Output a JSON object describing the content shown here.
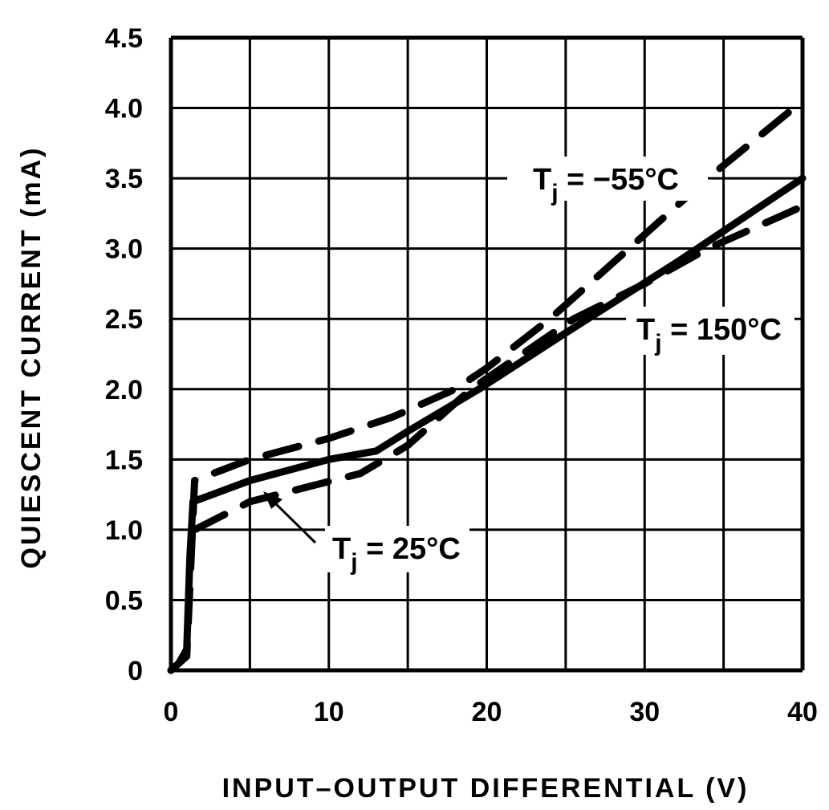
{
  "chart_data": {
    "type": "line",
    "title": "",
    "xlabel": "INPUT–OUTPUT DIFFERENTIAL (V)",
    "ylabel": "QUIESCENT CURRENT (mA)",
    "xlim": [
      0,
      40
    ],
    "ylim": [
      0,
      4.5
    ],
    "grid": true,
    "x_ticks": [
      0,
      10,
      20,
      30,
      40
    ],
    "x_tick_labels": [
      "0",
      "10",
      "20",
      "30",
      "40"
    ],
    "x_grid_step": 5,
    "y_ticks": [
      0,
      0.5,
      1.0,
      1.5,
      2.0,
      2.5,
      3.0,
      3.5,
      4.0,
      4.5
    ],
    "y_tick_labels": [
      "0",
      "0.5",
      "1.0",
      "1.5",
      "2.0",
      "2.5",
      "3.0",
      "3.5",
      "4.0",
      "4.5"
    ],
    "line_color": "#000000",
    "series": [
      {
        "name": "Tj = −55°C",
        "label": {
          "main": "T",
          "sub": "j",
          "rest": " = −55°C"
        },
        "style": "dashed",
        "x": [
          0,
          1.0,
          1.5,
          5,
          10,
          14,
          18,
          20,
          24,
          29,
          34,
          40
        ],
        "y": [
          0,
          0.1,
          1.35,
          1.5,
          1.65,
          1.8,
          2.0,
          2.15,
          2.5,
          3.0,
          3.5,
          4.05
        ]
      },
      {
        "name": "Tj = 25°C",
        "label": {
          "main": "T",
          "sub": "j",
          "rest": " = 25°C"
        },
        "style": "solid",
        "x": [
          0,
          0.5,
          1.0,
          1.2,
          1.4,
          5,
          10,
          13,
          15,
          19.5,
          25,
          32,
          40
        ],
        "y": [
          0,
          0.05,
          0.15,
          0.8,
          1.2,
          1.35,
          1.5,
          1.56,
          1.7,
          2.0,
          2.4,
          2.9,
          3.5
        ]
      },
      {
        "name": "Tj = 150°C",
        "label": {
          "main": "T",
          "sub": "j",
          "rest": " = 150°C"
        },
        "style": "dashed",
        "x": [
          1.5,
          5,
          12,
          15,
          19,
          25.5,
          30,
          34,
          40
        ],
        "y": [
          1.0,
          1.2,
          1.4,
          1.6,
          2.0,
          2.5,
          2.75,
          3.0,
          3.3
        ]
      }
    ]
  }
}
